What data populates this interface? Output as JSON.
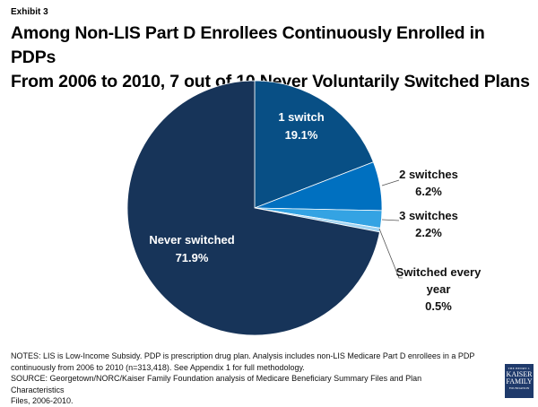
{
  "exhibit_label": "Exhibit 3",
  "title_line1": "Among Non-LIS Part D Enrollees Continuously Enrolled in PDPs",
  "title_line2": "From 2006 to 2010, 7 out of 10 Never Voluntarily Switched Plans",
  "chart_data": {
    "type": "pie",
    "title": "Among Non-LIS Part D Enrollees Continuously Enrolled in PDPs From 2006 to 2010, 7 out of 10 Never Voluntarily Switched Plans",
    "start": "12 o'clock, clockwise",
    "slices": [
      {
        "label": "1 switch",
        "label_lines": [
          "1 switch"
        ],
        "value": 19.1,
        "value_label": "19.1%",
        "color": "#084f85",
        "label_position": "inside"
      },
      {
        "label": "2 switches",
        "label_lines": [
          "2 switches"
        ],
        "value": 6.2,
        "value_label": "6.2%",
        "color": "#0070c0",
        "label_position": "outside"
      },
      {
        "label": "3 switches",
        "label_lines": [
          "3 switches"
        ],
        "value": 2.2,
        "value_label": "2.2%",
        "color": "#34a3e3",
        "label_position": "outside"
      },
      {
        "label": "Switched every year",
        "label_lines": [
          "Switched every",
          "year"
        ],
        "value": 0.5,
        "value_label": "0.5%",
        "color": "#9fd3f2",
        "label_position": "outside"
      },
      {
        "label": "Never switched",
        "label_lines": [
          "Never switched"
        ],
        "value": 71.9,
        "value_label": "71.9%",
        "color": "#173459",
        "label_position": "inside"
      }
    ]
  },
  "notes": {
    "line1": "NOTES: LIS is Low-Income Subsidy. PDP is prescription drug plan. Analysis includes non-LIS Medicare Part D enrollees in a PDP",
    "line2": "continuously from 2006 to 2010 (n=313,418). See Appendix 1 for full methodology.",
    "line3": "SOURCE: Georgetown/NORC/Kaiser Family Foundation analysis of Medicare Beneficiary Summary Files and Plan Characteristics",
    "line4": "Files, 2006-2010."
  },
  "logo": {
    "line1": "THE HENRY J.",
    "line2": "KAISER",
    "line3": "FAMILY",
    "line4": "FOUNDATION"
  }
}
